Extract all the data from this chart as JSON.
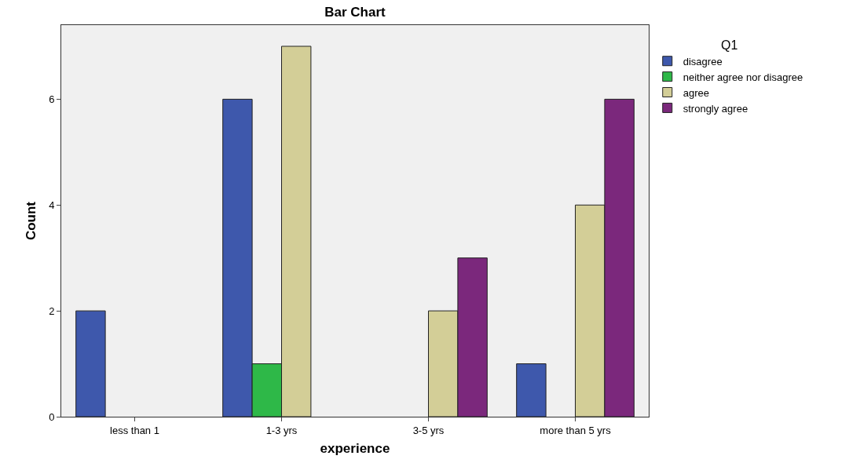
{
  "chart_data": {
    "type": "bar",
    "title": "Bar Chart",
    "xlabel": "experience",
    "ylabel": "Count",
    "legend_title": "Q1",
    "categories": [
      "less than 1",
      "1-3 yrs",
      "3-5 yrs",
      "more than 5 yrs"
    ],
    "series": [
      {
        "name": "disagree",
        "color": "#3e58ac",
        "values": [
          2,
          6,
          null,
          1
        ]
      },
      {
        "name": "neither agree nor disagree",
        "color": "#2eb848",
        "values": [
          null,
          1,
          null,
          null
        ]
      },
      {
        "name": "agree",
        "color": "#d3ce97",
        "values": [
          null,
          7,
          2,
          4
        ]
      },
      {
        "name": "strongly agree",
        "color": "#7b287c",
        "values": [
          null,
          null,
          3,
          6
        ]
      }
    ],
    "ylim": [
      0,
      7.4
    ],
    "yticks": [
      0,
      2,
      4,
      6
    ],
    "grid": false,
    "legend": "top right"
  }
}
